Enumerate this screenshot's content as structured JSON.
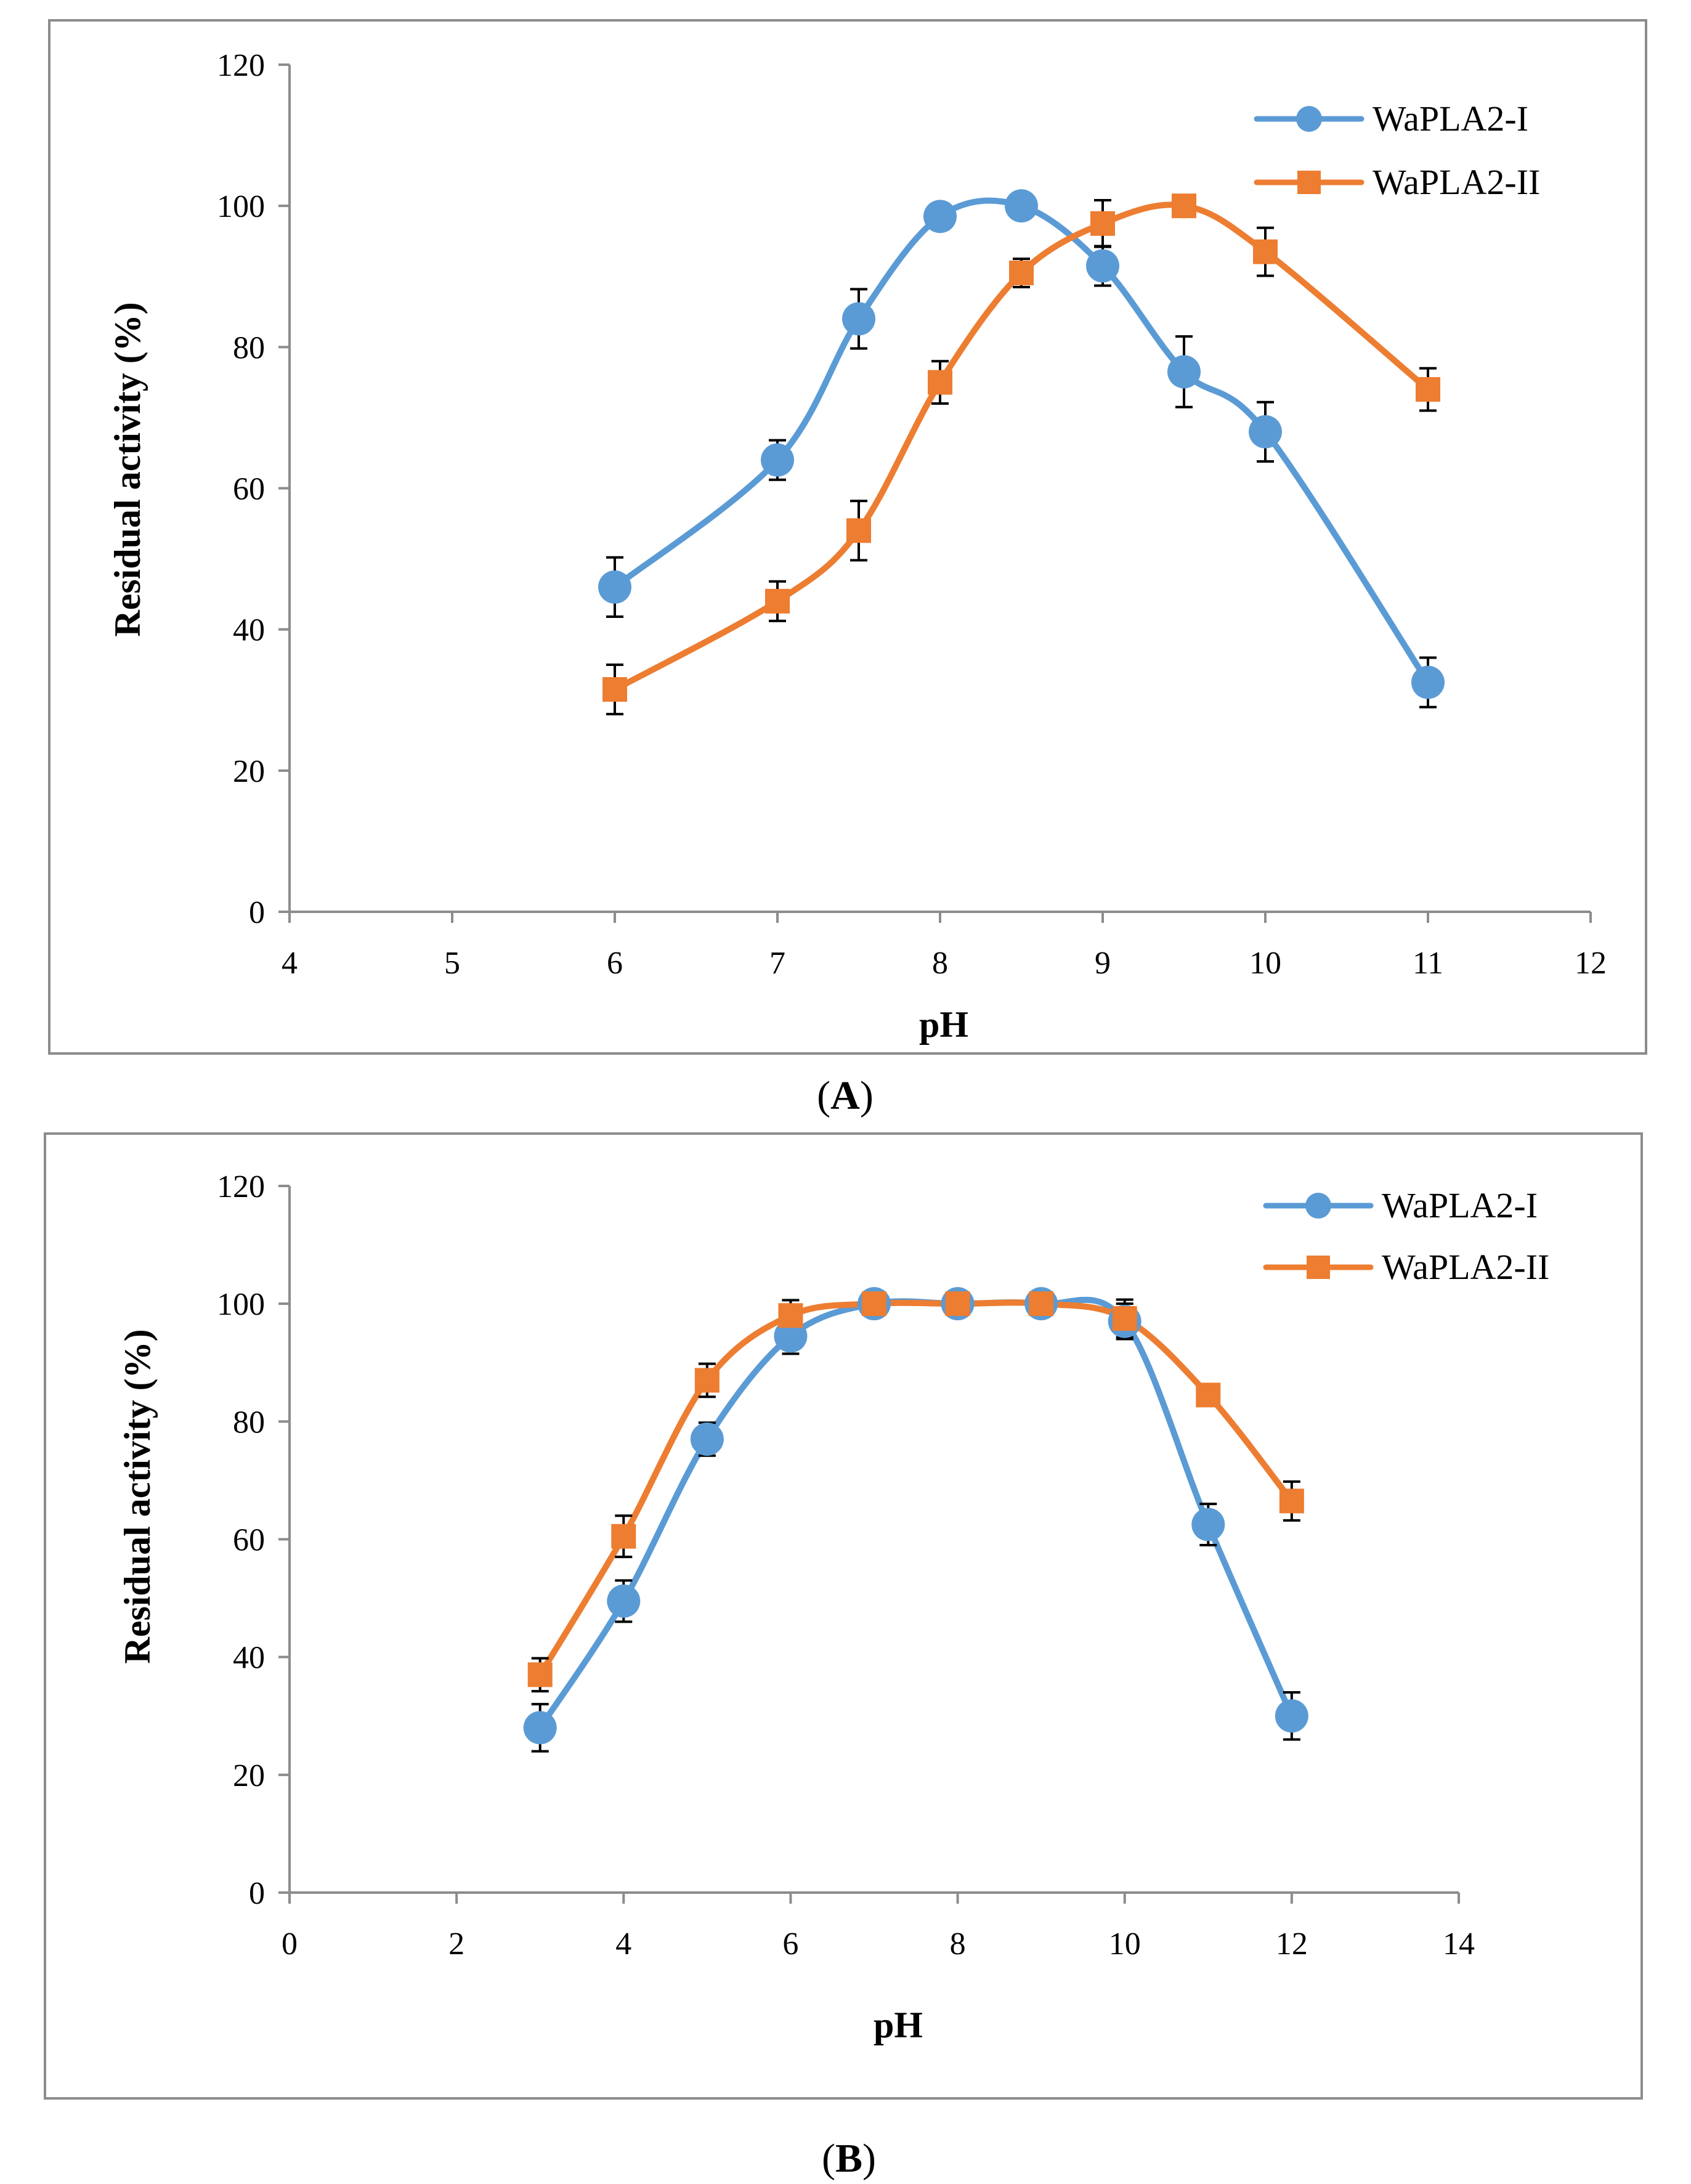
{
  "chart_data": [
    {
      "type": "line",
      "panel_label": "A",
      "xlabel": "pH",
      "ylabel": "Residual activity (%)",
      "xlim": [
        4,
        12
      ],
      "ylim": [
        0,
        120
      ],
      "xticks": [
        4,
        5,
        6,
        7,
        8,
        9,
        10,
        11,
        12
      ],
      "yticks": [
        0,
        20,
        40,
        60,
        80,
        100,
        120
      ],
      "grid": false,
      "legend_position": "top-right",
      "series": [
        {
          "name": "WaPLA2-I",
          "marker": "circle",
          "color": "#5b9bd5",
          "x": [
            6,
            7,
            7.5,
            8,
            8.5,
            9,
            9.5,
            10,
            11
          ],
          "y": [
            46,
            64,
            84,
            98.5,
            100,
            91.5,
            76.5,
            68,
            32.5
          ],
          "error": [
            4.2,
            2.8,
            4.2,
            0,
            0,
            2.8,
            5,
            4.2,
            3.5
          ]
        },
        {
          "name": "WaPLA2-II",
          "marker": "square",
          "color": "#ed7d31",
          "x": [
            6,
            7,
            7.5,
            8,
            8.5,
            9,
            9.5,
            10,
            11
          ],
          "y": [
            31.5,
            44,
            54,
            75,
            90.5,
            97.5,
            100,
            93.5,
            74
          ],
          "error": [
            3.5,
            2.8,
            4.2,
            3,
            2,
            3.3,
            0,
            3.4,
            3
          ]
        }
      ]
    },
    {
      "type": "line",
      "panel_label": "B",
      "xlabel": "pH",
      "ylabel": "Residual activity (%)",
      "xlim": [
        0,
        14
      ],
      "ylim": [
        0,
        120
      ],
      "xticks": [
        0,
        2,
        4,
        6,
        8,
        10,
        12,
        14
      ],
      "yticks": [
        0,
        20,
        40,
        60,
        80,
        100,
        120
      ],
      "grid": false,
      "legend_position": "top-right",
      "series": [
        {
          "name": "WaPLA2-I",
          "marker": "circle",
          "color": "#5b9bd5",
          "x": [
            3,
            4,
            5,
            6,
            7,
            8,
            9,
            10,
            11,
            12
          ],
          "y": [
            28,
            49.5,
            77,
            94.5,
            100,
            100,
            100,
            97,
            62.5,
            30
          ],
          "error": [
            4,
            3.5,
            2.8,
            3,
            0,
            0,
            0,
            3,
            3.5,
            4
          ]
        },
        {
          "name": "WaPLA2-II",
          "marker": "square",
          "color": "#ed7d31",
          "x": [
            3,
            4,
            5,
            6,
            7,
            8,
            9,
            10,
            11,
            12
          ],
          "y": [
            37,
            60.5,
            87,
            98,
            100,
            100,
            100,
            97.5,
            84.5,
            66.5
          ],
          "error": [
            2.8,
            3.5,
            2.8,
            2.6,
            0,
            0,
            0,
            3.2,
            0,
            3.3
          ]
        }
      ]
    }
  ]
}
